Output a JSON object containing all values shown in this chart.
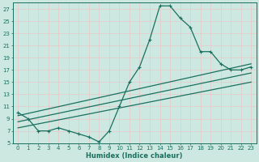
{
  "xlabel": "Humidex (Indice chaleur)",
  "bg_color": "#cce8e0",
  "grid_color": "#b0d4cc",
  "line_color": "#1a7060",
  "xlim": [
    -0.5,
    23.5
  ],
  "ylim": [
    5,
    28
  ],
  "yticks": [
    5,
    7,
    9,
    11,
    13,
    15,
    17,
    19,
    21,
    23,
    25,
    27
  ],
  "xticks": [
    0,
    1,
    2,
    3,
    4,
    5,
    6,
    7,
    8,
    9,
    10,
    11,
    12,
    13,
    14,
    15,
    16,
    17,
    18,
    19,
    20,
    21,
    22,
    23
  ],
  "curve1_x": [
    0,
    1,
    2,
    3,
    4,
    5,
    6,
    7,
    8,
    9,
    10,
    11,
    12,
    13,
    14,
    15,
    16,
    17,
    18,
    19,
    20,
    21,
    22,
    23
  ],
  "curve1_y": [
    10,
    9,
    7,
    7,
    7.5,
    7,
    6.5,
    6,
    5.2,
    7,
    11,
    15,
    17.5,
    22,
    27.5,
    27.5,
    25.5,
    24,
    20,
    20,
    18,
    17,
    17,
    17.5
  ],
  "line1_x": [
    0,
    23
  ],
  "line1_y": [
    9.5,
    18
  ],
  "line2_x": [
    0,
    23
  ],
  "line2_y": [
    8.5,
    16.5
  ],
  "line3_x": [
    0,
    23
  ],
  "line3_y": [
    7.5,
    15
  ],
  "tick_fontsize": 5.0,
  "xlabel_fontsize": 6.0
}
